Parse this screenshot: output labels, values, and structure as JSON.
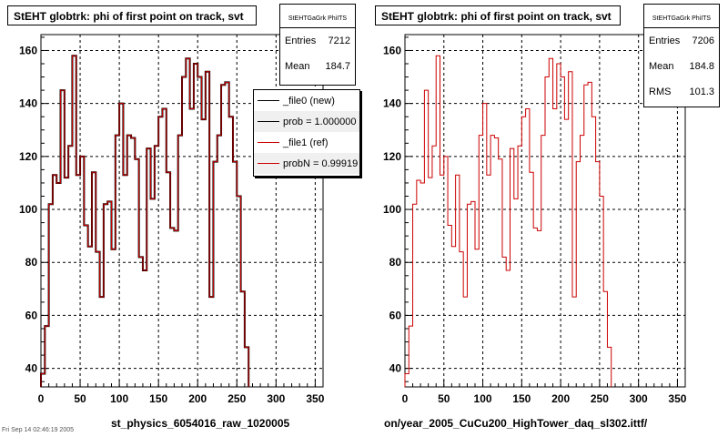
{
  "chart_data": [
    {
      "type": "histogram",
      "title": "StEHT globtrk: phi of first point on track, svt",
      "xlabel": "st_physics_6054016_raw_1020005",
      "xlim": [
        0,
        360
      ],
      "ylim": [
        33,
        166
      ],
      "x_ticks": [
        0,
        50,
        100,
        150,
        200,
        250,
        300,
        350
      ],
      "y_ticks": [
        40,
        60,
        80,
        100,
        120,
        140,
        160
      ],
      "grid": true,
      "bin_width": 5,
      "stats": {
        "name": "StEHTGaGrk PhiITS",
        "entries_label": "Entries",
        "entries": "7212",
        "mean_label": "Mean",
        "mean": "184.7"
      },
      "legend": {
        "position": "top-right",
        "entries": [
          "_file0 (new)",
          "prob = 1.000000",
          "_file1 (ref)",
          "probN = 0.99919"
        ],
        "colors": [
          "#000000",
          "#000000",
          "#cc0000",
          "#cc0000"
        ]
      },
      "series": [
        {
          "name": "_file0 (new)",
          "color": "#000000",
          "values": [
            38,
            56,
            102,
            113,
            110,
            145,
            112,
            124,
            158,
            113,
            120,
            94,
            86,
            114,
            84,
            67,
            102,
            103,
            85,
            128,
            140,
            113,
            128,
            127,
            119,
            82,
            77,
            123,
            104,
            124,
            135,
            138,
            114,
            93,
            92,
            128,
            150,
            157,
            138,
            155,
            150,
            134,
            152,
            67,
            118,
            128,
            147,
            148,
            135,
            118,
            105,
            69,
            48
          ]
        },
        {
          "name": "_file1 (ref)",
          "color": "#cc0000",
          "values": [
            38,
            56,
            102,
            113,
            110,
            145,
            112,
            124,
            158,
            113,
            120,
            94,
            86,
            114,
            84,
            67,
            102,
            103,
            85,
            128,
            140,
            113,
            128,
            127,
            119,
            82,
            77,
            123,
            104,
            124,
            135,
            138,
            114,
            93,
            92,
            128,
            150,
            157,
            138,
            155,
            150,
            134,
            152,
            67,
            118,
            128,
            147,
            148,
            135,
            118,
            105,
            69,
            48
          ]
        }
      ]
    },
    {
      "type": "histogram",
      "title": "StEHT globtrk: phi of first point on track, svt",
      "xlabel": "on/year_2005_CuCu200_HighTower_daq_sl302.ittf/",
      "xlim": [
        0,
        360
      ],
      "ylim": [
        33,
        166
      ],
      "x_ticks": [
        0,
        50,
        100,
        150,
        200,
        250,
        300,
        350
      ],
      "y_ticks": [
        40,
        60,
        80,
        100,
        120,
        140,
        160
      ],
      "grid": true,
      "bin_width": 5,
      "stats": {
        "name": "StEHTGaGrk PhiITS",
        "entries_label": "Entries",
        "entries": "7206",
        "mean_label": "Mean",
        "mean": "184.8",
        "rms_label": "RMS",
        "rms": "101.3"
      },
      "series": [
        {
          "name": "",
          "color": "#cc0000",
          "values": [
            38,
            56,
            102,
            111,
            110,
            145,
            112,
            124,
            158,
            113,
            120,
            94,
            86,
            113,
            84,
            67,
            102,
            103,
            85,
            128,
            140,
            113,
            128,
            127,
            119,
            82,
            77,
            123,
            104,
            124,
            135,
            138,
            114,
            93,
            92,
            128,
            150,
            157,
            138,
            155,
            150,
            134,
            152,
            67,
            118,
            128,
            147,
            148,
            135,
            118,
            105,
            69,
            48
          ]
        }
      ]
    }
  ],
  "footer": "Fri Sep 14 02:46:19 2005"
}
